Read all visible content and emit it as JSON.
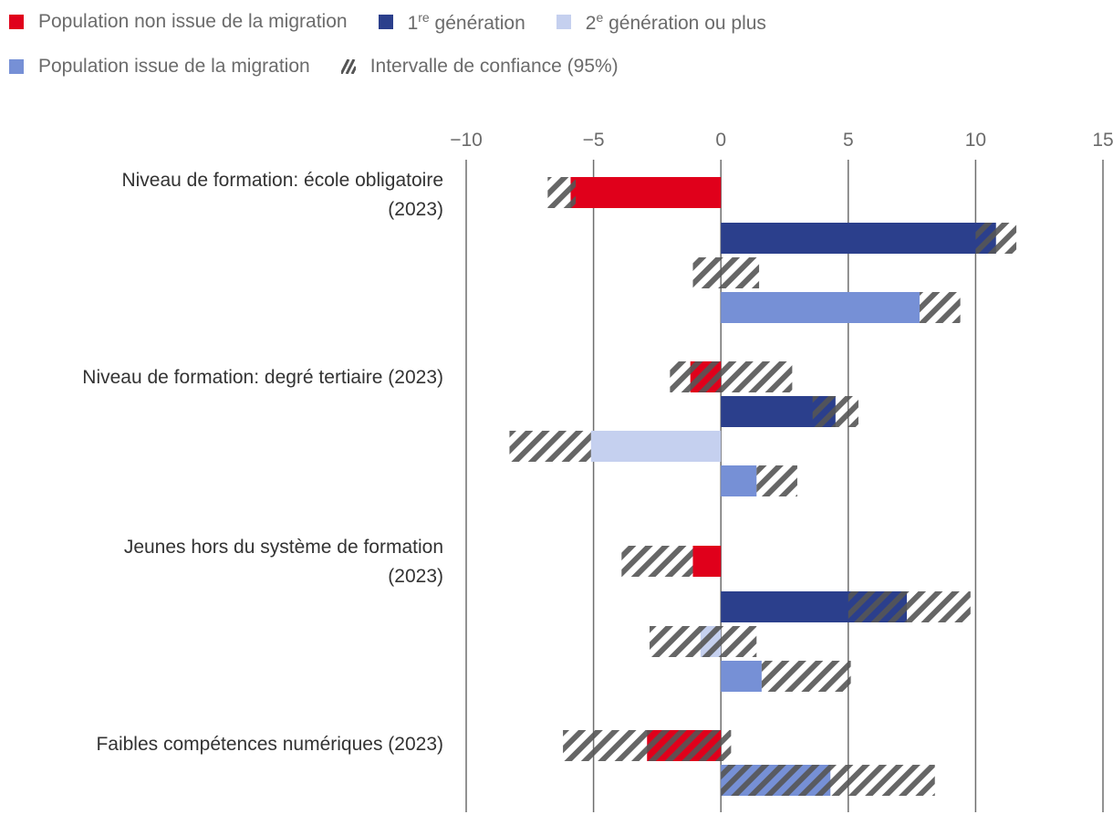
{
  "legend": {
    "items": [
      {
        "key": "non_mig",
        "label": "Population non issue de la migration",
        "color": "#e0001b"
      },
      {
        "key": "gen1",
        "label_base": "1",
        "label_sup": "re",
        "label_rest": " génération",
        "color": "#2b3f8c"
      },
      {
        "key": "gen2",
        "label_base": "2",
        "label_sup": "e",
        "label_rest": " génération ou plus",
        "color": "#c5d0ef"
      },
      {
        "key": "mig",
        "label": "Population issue de la migration",
        "color": "#7690d6"
      },
      {
        "key": "ci",
        "label": "Intervalle de confiance (95%)",
        "color": "#555555"
      }
    ]
  },
  "chart_data": {
    "type": "bar",
    "orientation": "horizontal",
    "x_ticks": [
      "−10",
      "−5",
      "0",
      "5",
      "10",
      "15"
    ],
    "x_tick_values": [
      -10,
      -5,
      0,
      5,
      10,
      15
    ],
    "xlim": [
      -10,
      15
    ],
    "grid": true,
    "categories": [
      {
        "label_lines": [
          "Niveau de formation: école obligatoire",
          "(2023)"
        ],
        "bars": [
          {
            "series": "non_mig",
            "value": -5.9,
            "ci": [
              -6.8,
              -5.7
            ]
          },
          {
            "series": "gen1",
            "value": 10.8,
            "ci": [
              10.0,
              11.6
            ]
          },
          {
            "series": "gen2",
            "value": 0.0,
            "ci": [
              -1.1,
              1.5
            ]
          },
          {
            "series": "mig",
            "value": 7.8,
            "ci": [
              7.8,
              9.4
            ]
          }
        ]
      },
      {
        "label_lines": [
          "Niveau de formation: degré tertiaire (2023)"
        ],
        "bars": [
          {
            "series": "non_mig",
            "value": -1.2,
            "ci": [
              -2.0,
              2.8
            ]
          },
          {
            "series": "gen1",
            "value": 4.5,
            "ci": [
              3.6,
              5.4
            ]
          },
          {
            "series": "gen2",
            "value": -5.1,
            "ci": [
              -8.3,
              -5.1
            ]
          },
          {
            "series": "mig",
            "value": 1.4,
            "ci": [
              1.4,
              3.0
            ]
          }
        ]
      },
      {
        "label_lines": [
          "Jeunes hors du système de formation",
          "(2023)"
        ],
        "bars": [
          {
            "series": "non_mig",
            "value": -1.1,
            "ci": [
              -3.9,
              -1.1
            ]
          },
          {
            "series": "gen1",
            "value": 7.3,
            "ci": [
              5.0,
              9.8
            ]
          },
          {
            "series": "gen2",
            "value": -0.8,
            "ci": [
              -2.8,
              1.4
            ]
          },
          {
            "series": "mig",
            "value": 1.6,
            "ci": [
              1.6,
              5.1
            ]
          }
        ]
      },
      {
        "label_lines": [
          "Faibles compétences numériques (2023)"
        ],
        "bars": [
          {
            "series": "non_mig",
            "value": -2.9,
            "ci": [
              -6.2,
              0.4
            ]
          },
          {
            "series": "mig",
            "value": 4.3,
            "ci": [
              0.0,
              8.4
            ]
          }
        ]
      }
    ]
  }
}
